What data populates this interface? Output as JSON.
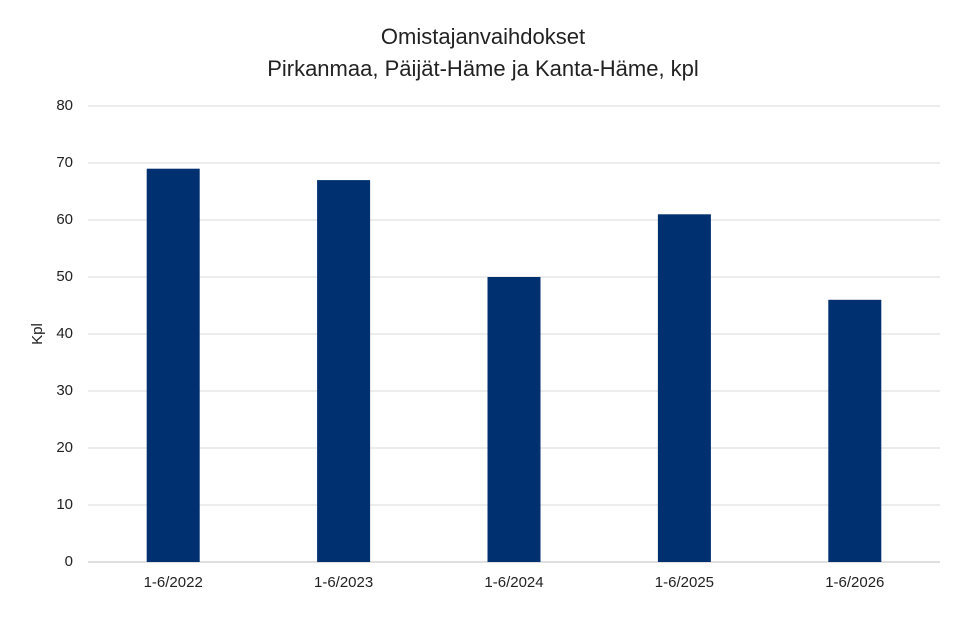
{
  "chart_data": {
    "type": "bar",
    "title": "Omistajanvaihdokset",
    "subtitle": "Pirkanmaa, Päijät-Häme ja Kanta-Häme, kpl",
    "y_label": "Kpl",
    "categories": [
      "1-6/2022",
      "1-6/2023",
      "1-6/2024",
      "1-6/2025",
      "1-6/2026"
    ],
    "values": [
      69,
      67,
      50,
      61,
      46
    ],
    "color": "#003070",
    "ylim": [
      0,
      80
    ],
    "yticks": [
      0,
      10,
      20,
      30,
      40,
      50,
      60,
      70,
      80
    ],
    "grid": true
  }
}
